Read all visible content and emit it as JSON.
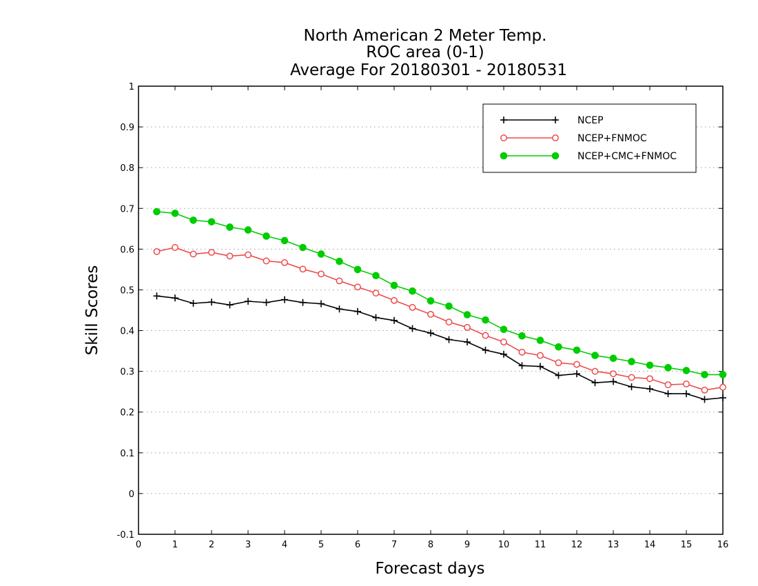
{
  "chart_data": {
    "type": "line",
    "title": [
      "North American 2 Meter Temp.",
      "ROC area (0-1)",
      "Average For 20180301 - 20180531"
    ],
    "xlabel": "Forecast days",
    "ylabel": "Skill Scores",
    "xlim": [
      0,
      16
    ],
    "ylim": [
      -0.1,
      1
    ],
    "xticks": [
      0,
      1,
      2,
      3,
      4,
      5,
      6,
      7,
      8,
      9,
      10,
      11,
      12,
      13,
      14,
      15,
      16
    ],
    "xtick_labels": [
      "0",
      "1",
      "2",
      "3",
      "4",
      "5",
      "6",
      "7",
      "8",
      "9",
      "10",
      "11",
      "12",
      "13",
      "14",
      "15",
      "16"
    ],
    "yticks": [
      -0.1,
      0,
      0.1,
      0.2,
      0.3,
      0.4,
      0.5,
      0.6,
      0.7,
      0.8,
      0.9,
      1
    ],
    "ytick_labels": [
      "-0.1",
      "0",
      "0.1",
      "0.2",
      "0.3",
      "0.4",
      "0.5",
      "0.6",
      "0.7",
      "0.8",
      "0.9",
      "1"
    ],
    "grid": true,
    "legend_position": "top-right",
    "x": [
      0.5,
      1,
      1.5,
      2,
      2.5,
      3,
      3.5,
      4,
      4.5,
      5,
      5.5,
      6,
      6.5,
      7,
      7.5,
      8,
      8.5,
      9,
      9.5,
      10,
      10.5,
      11,
      11.5,
      12,
      12.5,
      13,
      13.5,
      14,
      14.5,
      15,
      15.5,
      16
    ],
    "series": [
      {
        "name": "NCEP",
        "color": "#000000",
        "marker": "plus",
        "values": [
          0.485,
          0.48,
          0.467,
          0.47,
          0.463,
          0.472,
          0.469,
          0.476,
          0.469,
          0.466,
          0.453,
          0.447,
          0.432,
          0.425,
          0.405,
          0.394,
          0.378,
          0.372,
          0.352,
          0.342,
          0.314,
          0.312,
          0.29,
          0.294,
          0.272,
          0.275,
          0.262,
          0.257,
          0.245,
          0.245,
          0.231,
          0.235
        ]
      },
      {
        "name": "NCEP+FNMOC",
        "color": "#ee4a4a",
        "marker": "open-circle",
        "values": [
          0.594,
          0.604,
          0.588,
          0.592,
          0.583,
          0.586,
          0.571,
          0.567,
          0.551,
          0.539,
          0.522,
          0.507,
          0.492,
          0.474,
          0.457,
          0.44,
          0.421,
          0.408,
          0.388,
          0.372,
          0.347,
          0.339,
          0.321,
          0.317,
          0.3,
          0.294,
          0.285,
          0.282,
          0.267,
          0.269,
          0.254,
          0.261
        ]
      },
      {
        "name": "NCEP+CMC+FNMOC",
        "color": "#00cc00",
        "marker": "filled-circle",
        "values": [
          0.692,
          0.688,
          0.671,
          0.667,
          0.654,
          0.647,
          0.632,
          0.621,
          0.604,
          0.588,
          0.57,
          0.55,
          0.535,
          0.511,
          0.497,
          0.473,
          0.46,
          0.439,
          0.426,
          0.403,
          0.387,
          0.376,
          0.36,
          0.352,
          0.339,
          0.332,
          0.324,
          0.315,
          0.309,
          0.302,
          0.292,
          0.292
        ]
      }
    ]
  }
}
